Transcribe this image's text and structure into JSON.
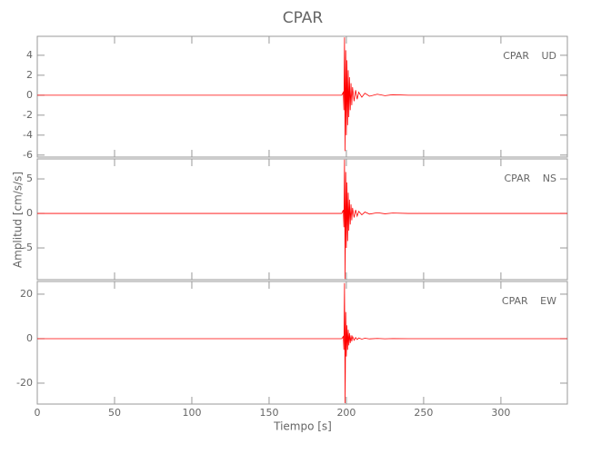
{
  "chart_data": [
    {
      "type": "line",
      "title": "CPAR",
      "label": "CPAR UD",
      "color": "#ff0000",
      "x": [
        0,
        197,
        198,
        198.4,
        198.8,
        199.2,
        199.6,
        200,
        200.4,
        200.8,
        201.2,
        201.6,
        202,
        202.5,
        203,
        203.5,
        204,
        205,
        206,
        207,
        208,
        210,
        212,
        215,
        220,
        225,
        230,
        240,
        343
      ],
      "values": [
        0,
        0,
        0.3,
        -1.5,
        5.8,
        -5.6,
        4.5,
        -4,
        3.5,
        -3,
        2.5,
        -2.2,
        1.8,
        -1.5,
        1.2,
        -1,
        0.8,
        -0.6,
        0.5,
        -0.4,
        0.3,
        -0.2,
        0.2,
        -0.1,
        0.1,
        -0.05,
        0.05,
        0,
        0
      ],
      "xlim": [
        0,
        343
      ],
      "ylim": [
        -6.2,
        5.9
      ],
      "yticks": [
        -6,
        -4,
        -2,
        0,
        2,
        4
      ]
    },
    {
      "type": "line",
      "y_label": "Amplitud [cm/s/s]",
      "label": "CPAR NS",
      "color": "#ff0000",
      "x": [
        0,
        197,
        198,
        198.4,
        198.8,
        199.2,
        199.6,
        200,
        200.4,
        200.8,
        201.2,
        201.6,
        202,
        202.5,
        203,
        203.5,
        204,
        205,
        206,
        207,
        208,
        210,
        212,
        215,
        220,
        225,
        230,
        240,
        343
      ],
      "values": [
        0,
        0,
        0.5,
        -2,
        7.8,
        -9.5,
        6,
        -5,
        4.5,
        -4,
        3,
        -2.5,
        2,
        -1.6,
        1.3,
        -1,
        0.8,
        -0.6,
        0.5,
        -0.4,
        0.3,
        -0.2,
        0.2,
        -0.1,
        0.1,
        -0.05,
        0.05,
        0,
        0
      ],
      "xlim": [
        0,
        343
      ],
      "ylim": [
        -9.6,
        7.9
      ],
      "yticks": [
        -5,
        0,
        5
      ]
    },
    {
      "type": "line",
      "x_label": "Tiempo [s]",
      "label": "CPAR EW",
      "color": "#ff0000",
      "x": [
        0,
        197,
        198,
        198.4,
        198.8,
        199.2,
        199.6,
        200,
        200.4,
        200.8,
        201.2,
        201.6,
        202,
        202.5,
        203,
        203.5,
        204,
        205,
        206,
        207,
        208,
        210,
        212,
        215,
        220,
        225,
        230,
        240,
        343
      ],
      "values": [
        0,
        0,
        1,
        -5,
        25,
        -29,
        12,
        -8,
        6,
        -5,
        4,
        -3,
        2.5,
        -2,
        1.5,
        -1.2,
        1,
        -0.7,
        0.5,
        -0.4,
        0.3,
        -0.2,
        0.2,
        -0.1,
        0.1,
        -0.05,
        0.05,
        0,
        0
      ],
      "xlim": [
        0,
        343
      ],
      "ylim": [
        -29.4,
        25.7
      ],
      "yticks": [
        -20,
        0,
        20
      ],
      "xticks": [
        0,
        50,
        100,
        150,
        200,
        250,
        300
      ]
    }
  ]
}
